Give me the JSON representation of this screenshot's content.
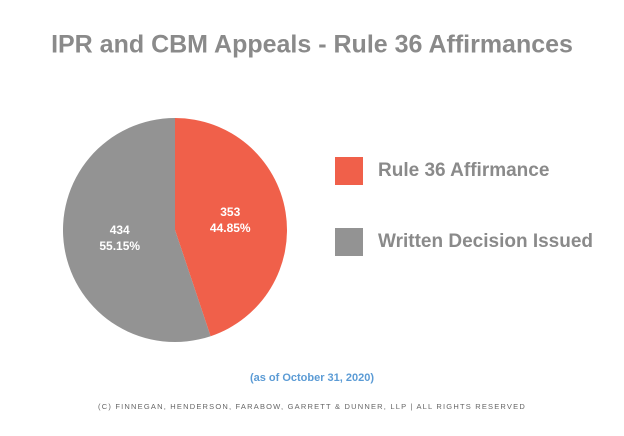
{
  "chart_data": {
    "type": "pie",
    "title": "IPR and CBM Appeals - Rule 36 Affirmances",
    "categories": [
      "Rule 36 Affirmance",
      "Written Decision Issued"
    ],
    "values": [
      353,
      434
    ],
    "percent_labels": [
      "44.85%",
      "55.15%"
    ],
    "colors": [
      "#f0604a",
      "#939393"
    ],
    "note": "(as of October 31, 2020)",
    "footer": "(C) FINNEGAN, HENDERSON, FARABOW, GARRETT & DUNNER, LLP | ALL RIGHTS RESERVED"
  }
}
